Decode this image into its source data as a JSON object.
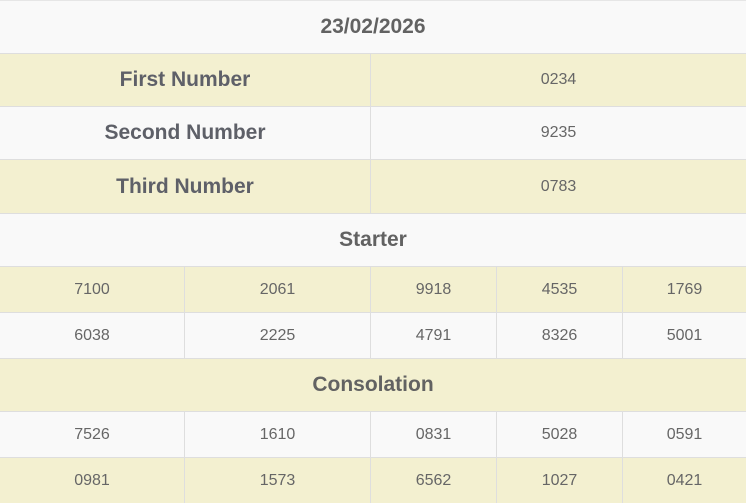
{
  "date": "23/02/2026",
  "prizes": [
    {
      "label": "First Number",
      "value": "0234"
    },
    {
      "label": "Second Number",
      "value": "9235"
    },
    {
      "label": "Third Number",
      "value": "0783"
    }
  ],
  "starter": {
    "title": "Starter",
    "rows": [
      [
        "7100",
        "2061",
        "9918",
        "4535",
        "1769"
      ],
      [
        "6038",
        "2225",
        "4791",
        "8326",
        "5001"
      ]
    ]
  },
  "consolation": {
    "title": "Consolation",
    "rows": [
      [
        "7526",
        "1610",
        "0831",
        "5028",
        "0591"
      ],
      [
        "0981",
        "1573",
        "6562",
        "1027",
        "0421"
      ]
    ]
  },
  "colors": {
    "highlight_row": "#f3f0d0",
    "plain_row": "#f9f9f9",
    "border": "#dedede",
    "text": "#5f5f5f"
  }
}
